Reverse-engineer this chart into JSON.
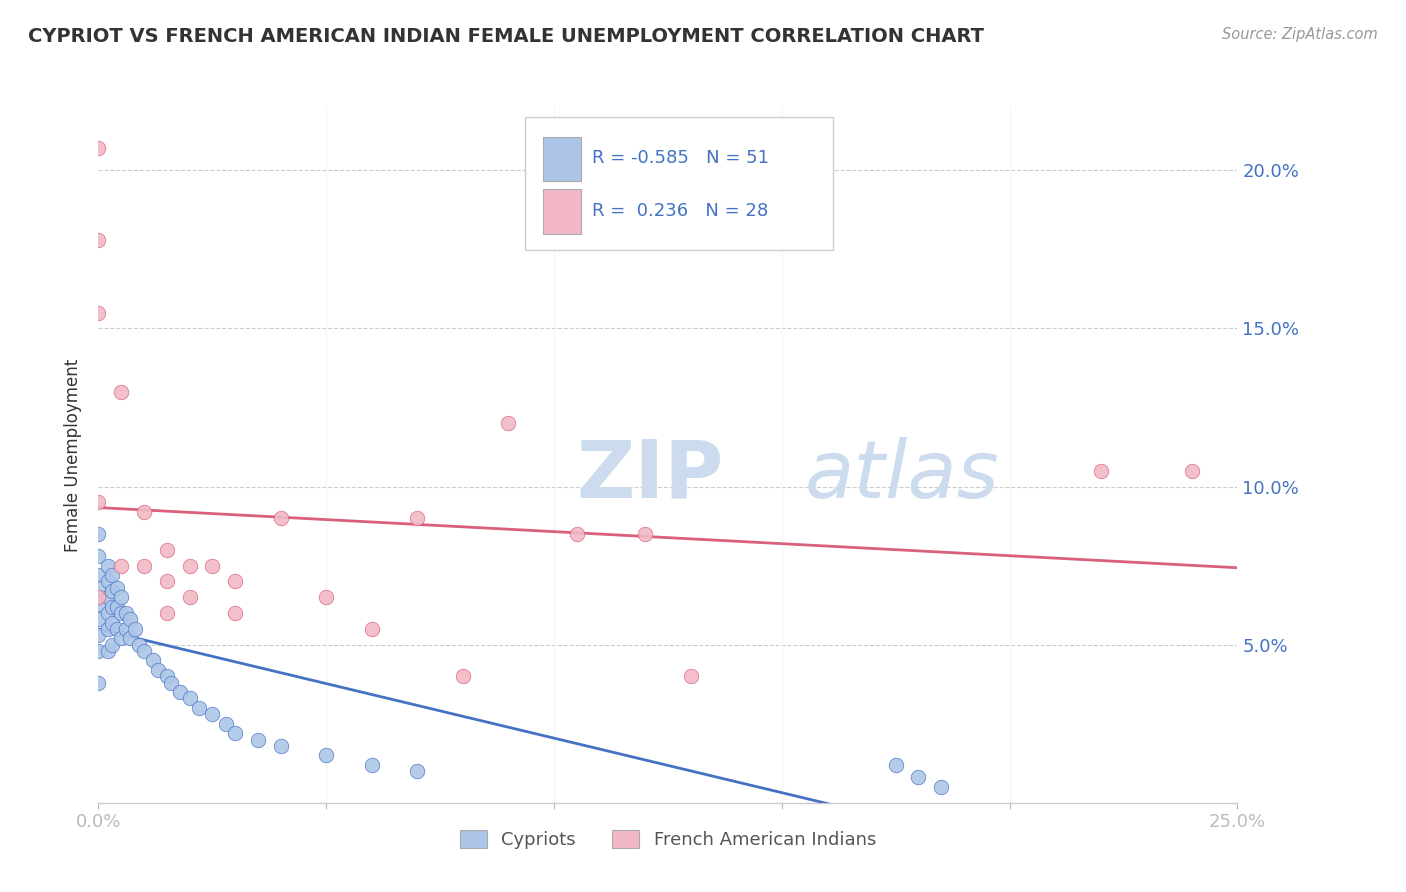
{
  "title": "CYPRIOT VS FRENCH AMERICAN INDIAN FEMALE UNEMPLOYMENT CORRELATION CHART",
  "source": "Source: ZipAtlas.com",
  "ylabel": "Female Unemployment",
  "xlim": [
    0.0,
    0.25
  ],
  "ylim": [
    0.0,
    0.22
  ],
  "yticks": [
    0.0,
    0.05,
    0.1,
    0.15,
    0.2
  ],
  "ytick_labels": [
    "",
    "5.0%",
    "10.0%",
    "15.0%",
    "20.0%"
  ],
  "legend_R1": "-0.585",
  "legend_N1": "51",
  "legend_R2": "0.236",
  "legend_N2": "28",
  "color_blue": "#adc6e8",
  "color_pink": "#f2b8c6",
  "line_blue": "#4472c4",
  "line_pink": "#d9607a",
  "watermark_color": "#ccdcee",
  "cypriot_x": [
    0.0,
    0.0,
    0.0,
    0.0,
    0.0,
    0.0,
    0.0,
    0.0,
    0.0,
    0.002,
    0.002,
    0.002,
    0.002,
    0.002,
    0.002,
    0.003,
    0.003,
    0.003,
    0.003,
    0.003,
    0.004,
    0.004,
    0.004,
    0.005,
    0.005,
    0.005,
    0.006,
    0.006,
    0.007,
    0.007,
    0.008,
    0.009,
    0.01,
    0.012,
    0.013,
    0.015,
    0.016,
    0.018,
    0.02,
    0.022,
    0.025,
    0.028,
    0.03,
    0.035,
    0.04,
    0.05,
    0.06,
    0.07,
    0.175,
    0.18,
    0.185
  ],
  "cypriot_y": [
    0.085,
    0.078,
    0.072,
    0.068,
    0.063,
    0.058,
    0.053,
    0.048,
    0.038,
    0.075,
    0.07,
    0.065,
    0.06,
    0.055,
    0.048,
    0.072,
    0.067,
    0.062,
    0.057,
    0.05,
    0.068,
    0.062,
    0.055,
    0.065,
    0.06,
    0.052,
    0.06,
    0.055,
    0.058,
    0.052,
    0.055,
    0.05,
    0.048,
    0.045,
    0.042,
    0.04,
    0.038,
    0.035,
    0.033,
    0.03,
    0.028,
    0.025,
    0.022,
    0.02,
    0.018,
    0.015,
    0.012,
    0.01,
    0.012,
    0.008,
    0.005
  ],
  "french_ai_x": [
    0.0,
    0.0,
    0.0,
    0.0,
    0.0,
    0.005,
    0.005,
    0.01,
    0.01,
    0.015,
    0.015,
    0.015,
    0.02,
    0.02,
    0.025,
    0.03,
    0.03,
    0.04,
    0.05,
    0.06,
    0.07,
    0.08,
    0.09,
    0.105,
    0.12,
    0.13,
    0.22,
    0.24
  ],
  "french_ai_y": [
    0.207,
    0.178,
    0.155,
    0.095,
    0.065,
    0.13,
    0.075,
    0.092,
    0.075,
    0.08,
    0.07,
    0.06,
    0.075,
    0.065,
    0.075,
    0.07,
    0.06,
    0.09,
    0.065,
    0.055,
    0.09,
    0.04,
    0.12,
    0.085,
    0.085,
    0.04,
    0.105,
    0.105
  ]
}
